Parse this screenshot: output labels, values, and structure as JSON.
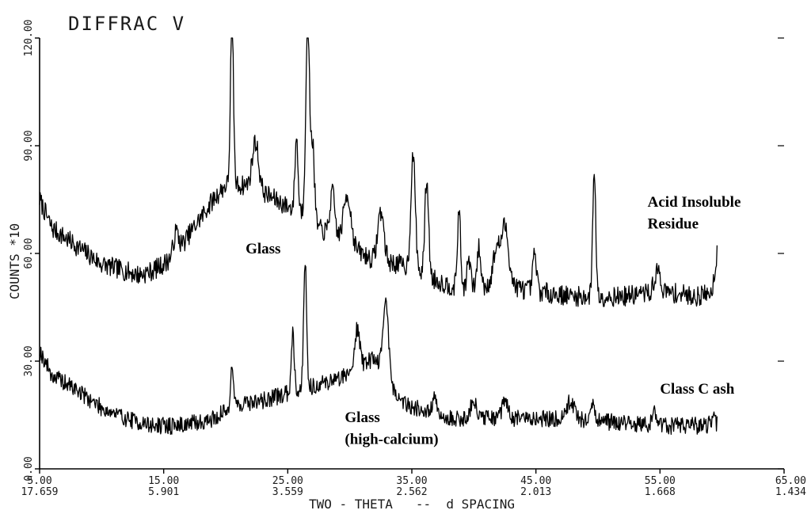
{
  "chart_data": {
    "type": "line",
    "title": "DIFFRAC V",
    "xlabel": "TWO - THETA   --  d SPACING",
    "ylabel": "COUNTS  *10",
    "xlim": [
      5,
      65
    ],
    "ylim": [
      0,
      120
    ],
    "x_ticks": [
      {
        "value": 5,
        "label": "5.00",
        "dlabel": "17.659"
      },
      {
        "value": 15,
        "label": "15.00",
        "dlabel": "5.901"
      },
      {
        "value": 25,
        "label": "25.00",
        "dlabel": "3.559"
      },
      {
        "value": 35,
        "label": "35.00",
        "dlabel": "2.562"
      },
      {
        "value": 45,
        "label": "45.00",
        "dlabel": "2.013"
      },
      {
        "value": 55,
        "label": "55.00",
        "dlabel": "1.668"
      },
      {
        "value": 65,
        "label": "65.00",
        "dlabel": "1.434"
      }
    ],
    "y_ticks": [
      {
        "value": 0,
        "label": "0.00"
      },
      {
        "value": 30,
        "label": "30.00"
      },
      {
        "value": 60,
        "label": "60.00"
      },
      {
        "value": 90,
        "label": "90.00"
      },
      {
        "value": 120,
        "label": "120.00"
      }
    ],
    "grid": false,
    "series": [
      {
        "name": "Acid Insoluble Residue",
        "color": "#000000",
        "baseline": [
          [
            5,
            75
          ],
          [
            6,
            67
          ],
          [
            8,
            62
          ],
          [
            10,
            57
          ],
          [
            12,
            55
          ],
          [
            13,
            54
          ],
          [
            14,
            55
          ],
          [
            15,
            57
          ],
          [
            16,
            60
          ],
          [
            17,
            65
          ],
          [
            18,
            70
          ],
          [
            19,
            75
          ],
          [
            20,
            79
          ],
          [
            22,
            79
          ],
          [
            24,
            75
          ],
          [
            25,
            73
          ],
          [
            26,
            72
          ],
          [
            27,
            68
          ],
          [
            28,
            66
          ],
          [
            30,
            62
          ],
          [
            32,
            58
          ],
          [
            34,
            57
          ],
          [
            36,
            54
          ],
          [
            38,
            51
          ],
          [
            40,
            50
          ],
          [
            42,
            52
          ],
          [
            44,
            50
          ],
          [
            46,
            49
          ],
          [
            48,
            48
          ],
          [
            50,
            48
          ],
          [
            52,
            48
          ],
          [
            54,
            49
          ],
          [
            56,
            49
          ],
          [
            58,
            48
          ],
          [
            59,
            49
          ],
          [
            59.6,
            52
          ]
        ],
        "peaks": [
          [
            16.0,
            6,
            0.2
          ],
          [
            20.5,
            48,
            0.12
          ],
          [
            22.4,
            13,
            0.25
          ],
          [
            25.7,
            20,
            0.12
          ],
          [
            26.6,
            55,
            0.15
          ],
          [
            27.0,
            22,
            0.15
          ],
          [
            28.6,
            12,
            0.2
          ],
          [
            29.8,
            14,
            0.3
          ],
          [
            32.5,
            14,
            0.25
          ],
          [
            35.1,
            32,
            0.18
          ],
          [
            36.2,
            27,
            0.15
          ],
          [
            38.8,
            22,
            0.12
          ],
          [
            39.6,
            8,
            0.15
          ],
          [
            40.4,
            11,
            0.15
          ],
          [
            41.8,
            9,
            0.25
          ],
          [
            42.5,
            16,
            0.3
          ],
          [
            44.9,
            10,
            0.15
          ],
          [
            49.7,
            36,
            0.12
          ],
          [
            54.8,
            6,
            0.25
          ],
          [
            59.7,
            10,
            0.2
          ]
        ],
        "noise": 2.8,
        "seed": 7
      },
      {
        "name": "Class C ash",
        "color": "#000000",
        "baseline": [
          [
            5,
            33
          ],
          [
            6,
            26
          ],
          [
            8,
            22
          ],
          [
            10,
            17
          ],
          [
            12,
            14
          ],
          [
            14,
            12
          ],
          [
            16,
            12
          ],
          [
            18,
            13
          ],
          [
            19,
            14
          ],
          [
            20,
            16
          ],
          [
            21,
            18
          ],
          [
            23,
            19
          ],
          [
            25,
            21
          ],
          [
            27,
            23
          ],
          [
            29,
            25
          ],
          [
            31,
            29
          ],
          [
            32,
            31
          ],
          [
            33,
            26
          ],
          [
            34,
            19
          ],
          [
            36,
            16
          ],
          [
            38,
            14
          ],
          [
            40,
            14
          ],
          [
            42,
            14
          ],
          [
            44,
            14
          ],
          [
            46,
            14
          ],
          [
            48,
            14
          ],
          [
            50,
            13
          ],
          [
            52,
            13
          ],
          [
            54,
            12
          ],
          [
            56,
            12
          ],
          [
            58,
            12
          ],
          [
            59.6,
            12
          ]
        ],
        "peaks": [
          [
            20.5,
            12,
            0.12
          ],
          [
            25.4,
            17,
            0.12
          ],
          [
            26.4,
            36,
            0.12
          ],
          [
            30.6,
            11,
            0.2
          ],
          [
            32.9,
            20,
            0.22
          ],
          [
            36.8,
            5,
            0.15
          ],
          [
            40.0,
            4,
            0.3
          ],
          [
            42.5,
            6,
            0.2
          ],
          [
            47.8,
            5,
            0.3
          ],
          [
            49.6,
            4,
            0.2
          ],
          [
            54.6,
            4,
            0.2
          ],
          [
            59.3,
            2,
            0.2
          ]
        ],
        "noise": 2.4,
        "seed": 19
      }
    ],
    "annotations": [
      {
        "text": "Acid Insoluble",
        "x": 54.0,
        "y": 73
      },
      {
        "text": "Residue",
        "x": 54.0,
        "y": 67
      },
      {
        "text": "Glass",
        "x": 21.6,
        "y": 60
      },
      {
        "text": "Class C ash",
        "x": 55.0,
        "y": 21
      },
      {
        "text": "Glass",
        "x": 29.6,
        "y": 13
      },
      {
        "text": "(high-calcium)",
        "x": 29.6,
        "y": 7
      }
    ]
  }
}
